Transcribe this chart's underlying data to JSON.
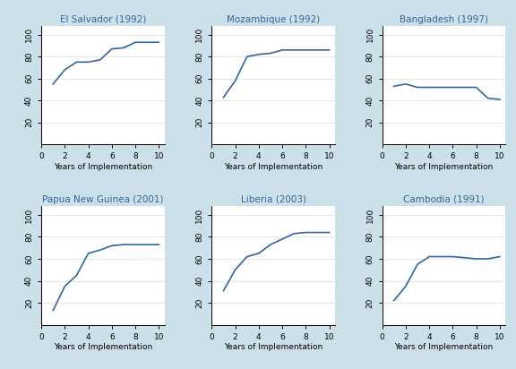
{
  "background_color": "#cce0ea",
  "plot_background": "#ffffff",
  "line_color": "#336699",
  "title_color": "#336699",
  "subplots": [
    {
      "title": "El Salvador (1992)",
      "x": [
        1,
        2,
        3,
        4,
        5,
        6,
        7,
        8,
        9,
        10
      ],
      "y": [
        55,
        68,
        75,
        75,
        77,
        87,
        88,
        93,
        93,
        93
      ]
    },
    {
      "title": "Mozambique (1992)",
      "x": [
        1,
        2,
        3,
        4,
        5,
        6,
        7,
        8,
        9,
        10
      ],
      "y": [
        43,
        58,
        80,
        82,
        83,
        86,
        86,
        86,
        86,
        86
      ]
    },
    {
      "title": "Bangladesh (1997)",
      "x": [
        1,
        2,
        3,
        4,
        5,
        6,
        7,
        8,
        9,
        10
      ],
      "y": [
        53,
        55,
        52,
        52,
        52,
        52,
        52,
        52,
        42,
        41
      ]
    },
    {
      "title": "Papua New Guinea (2001)",
      "x": [
        1,
        2,
        3,
        4,
        5,
        6,
        7,
        8,
        9,
        10
      ],
      "y": [
        13,
        35,
        45,
        65,
        68,
        72,
        73,
        73,
        73,
        73
      ]
    },
    {
      "title": "Liberia (2003)",
      "x": [
        1,
        2,
        3,
        4,
        5,
        6,
        7,
        8,
        9,
        10
      ],
      "y": [
        31,
        50,
        62,
        65,
        73,
        78,
        83,
        84,
        84,
        84
      ]
    },
    {
      "title": "Cambodia (1991)",
      "x": [
        1,
        2,
        3,
        4,
        5,
        6,
        7,
        8,
        9,
        10
      ],
      "y": [
        22,
        35,
        55,
        62,
        62,
        62,
        61,
        60,
        60,
        62
      ]
    }
  ],
  "xlabel": "Years of Implementation",
  "ylim": [
    0,
    108
  ],
  "xlim": [
    0,
    10.5
  ],
  "yticks": [
    20,
    40,
    60,
    80,
    100
  ],
  "xticks": [
    0,
    2,
    4,
    6,
    8,
    10
  ],
  "title_fontsize": 7.5,
  "tick_fontsize": 6.5,
  "xlabel_fontsize": 6.5,
  "line_width": 1.2,
  "grid_color": "#e8e8e8"
}
